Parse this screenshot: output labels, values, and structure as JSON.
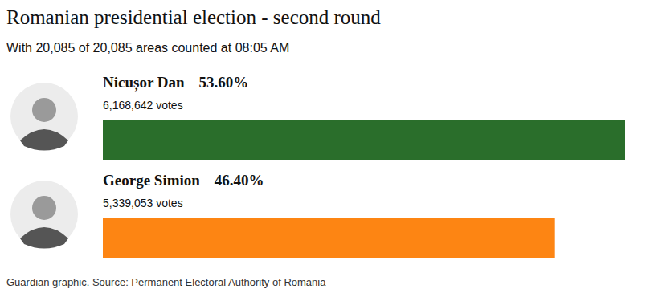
{
  "chart_data": {
    "type": "bar",
    "orientation": "horizontal",
    "title": "Romanian presidential election - second round",
    "subtitle": "With 20,085 of 20,085 areas counted at 08:05 AM",
    "source": "Guardian graphic. Source: Permanent Electoral Authority of Romania",
    "categories": [
      "Nicușor Dan",
      "George Simion"
    ],
    "values": [
      53.6,
      46.4
    ],
    "value_labels": [
      "53.60%",
      "46.40%"
    ],
    "vote_labels": [
      "6,168,642 votes",
      "5,339,053 votes"
    ],
    "colors": [
      "#2a6e2b",
      "#fd8513"
    ],
    "xlim": [
      0,
      53.6
    ],
    "data_labels": true,
    "tick_labels": false,
    "grid": false
  }
}
